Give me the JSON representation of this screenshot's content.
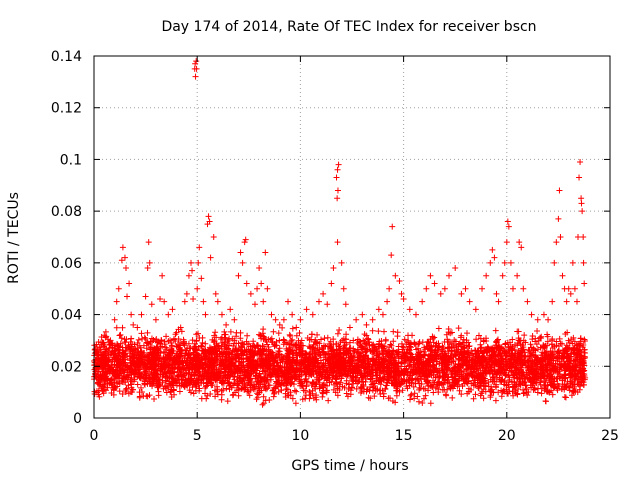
{
  "chart_data": {
    "type": "scatter",
    "title": "Day 174 of 2014, Rate Of TEC Index for receiver bscn",
    "xlabel": "GPS time / hours",
    "ylabel": "ROTI / TECUs",
    "xlim": [
      0,
      25
    ],
    "ylim": [
      0,
      0.14
    ],
    "xticks": [
      0,
      5,
      10,
      15,
      20,
      25
    ],
    "yticks": [
      0,
      0.02,
      0.04,
      0.06,
      0.08,
      0.1,
      0.12,
      0.14
    ],
    "xtick_labels": [
      "0",
      "5",
      "10",
      "15",
      "20",
      "25"
    ],
    "ytick_labels": [
      "0",
      "0.02",
      "0.04",
      "0.06",
      "0.08",
      "0.1",
      "0.12",
      "0.14"
    ],
    "grid": true,
    "marker": "+",
    "series": [
      {
        "name": "ROTI",
        "color": "#ff0000",
        "band": {
          "x_range": [
            0,
            23.8
          ],
          "y_range": [
            0.004,
            0.035
          ],
          "typical": 0.018,
          "count": 5200
        },
        "points": [
          [
            0.2,
            0.026
          ],
          [
            0.5,
            0.032
          ],
          [
            0.8,
            0.03
          ],
          [
            1.0,
            0.038
          ],
          [
            1.1,
            0.045
          ],
          [
            1.2,
            0.05
          ],
          [
            1.35,
            0.061
          ],
          [
            1.4,
            0.066
          ],
          [
            1.5,
            0.062
          ],
          [
            1.55,
            0.058
          ],
          [
            1.6,
            0.047
          ],
          [
            1.7,
            0.052
          ],
          [
            1.8,
            0.04
          ],
          [
            1.9,
            0.036
          ],
          [
            2.1,
            0.035
          ],
          [
            2.3,
            0.04
          ],
          [
            2.5,
            0.047
          ],
          [
            2.6,
            0.058
          ],
          [
            2.65,
            0.068
          ],
          [
            2.7,
            0.06
          ],
          [
            2.8,
            0.044
          ],
          [
            3.0,
            0.038
          ],
          [
            3.2,
            0.046
          ],
          [
            3.3,
            0.055
          ],
          [
            3.4,
            0.045
          ],
          [
            3.6,
            0.04
          ],
          [
            3.8,
            0.042
          ],
          [
            4.0,
            0.033
          ],
          [
            4.2,
            0.035
          ],
          [
            4.4,
            0.045
          ],
          [
            4.5,
            0.048
          ],
          [
            4.6,
            0.055
          ],
          [
            4.7,
            0.06
          ],
          [
            4.75,
            0.057
          ],
          [
            4.8,
            0.046
          ],
          [
            4.88,
            0.135
          ],
          [
            4.9,
            0.137
          ],
          [
            4.92,
            0.132
          ],
          [
            4.95,
            0.138
          ],
          [
            4.97,
            0.135
          ],
          [
            5.0,
            0.05
          ],
          [
            5.05,
            0.06
          ],
          [
            5.1,
            0.066
          ],
          [
            5.2,
            0.054
          ],
          [
            5.3,
            0.045
          ],
          [
            5.4,
            0.04
          ],
          [
            5.5,
            0.075
          ],
          [
            5.55,
            0.078
          ],
          [
            5.6,
            0.076
          ],
          [
            5.65,
            0.062
          ],
          [
            5.8,
            0.07
          ],
          [
            5.9,
            0.048
          ],
          [
            6.0,
            0.045
          ],
          [
            6.2,
            0.04
          ],
          [
            6.4,
            0.036
          ],
          [
            6.6,
            0.042
          ],
          [
            6.8,
            0.038
          ],
          [
            7.0,
            0.055
          ],
          [
            7.1,
            0.064
          ],
          [
            7.2,
            0.06
          ],
          [
            7.3,
            0.068
          ],
          [
            7.35,
            0.069
          ],
          [
            7.4,
            0.052
          ],
          [
            7.6,
            0.048
          ],
          [
            7.8,
            0.044
          ],
          [
            7.9,
            0.05
          ],
          [
            8.0,
            0.058
          ],
          [
            8.1,
            0.052
          ],
          [
            8.2,
            0.045
          ],
          [
            8.3,
            0.064
          ],
          [
            8.4,
            0.05
          ],
          [
            8.6,
            0.04
          ],
          [
            8.8,
            0.038
          ],
          [
            9.0,
            0.036
          ],
          [
            9.2,
            0.038
          ],
          [
            9.4,
            0.045
          ],
          [
            9.6,
            0.04
          ],
          [
            9.8,
            0.035
          ],
          [
            10.0,
            0.038
          ],
          [
            10.3,
            0.042
          ],
          [
            10.6,
            0.04
          ],
          [
            10.9,
            0.045
          ],
          [
            11.1,
            0.048
          ],
          [
            11.3,
            0.044
          ],
          [
            11.5,
            0.052
          ],
          [
            11.6,
            0.058
          ],
          [
            11.75,
            0.093
          ],
          [
            11.8,
            0.096
          ],
          [
            11.85,
            0.098
          ],
          [
            11.82,
            0.088
          ],
          [
            11.78,
            0.085
          ],
          [
            11.8,
            0.068
          ],
          [
            12.0,
            0.06
          ],
          [
            12.1,
            0.05
          ],
          [
            12.2,
            0.044
          ],
          [
            12.4,
            0.035
          ],
          [
            12.7,
            0.038
          ],
          [
            13.0,
            0.04
          ],
          [
            13.2,
            0.036
          ],
          [
            13.5,
            0.038
          ],
          [
            13.8,
            0.042
          ],
          [
            14.0,
            0.04
          ],
          [
            14.2,
            0.045
          ],
          [
            14.3,
            0.05
          ],
          [
            14.4,
            0.063
          ],
          [
            14.45,
            0.074
          ],
          [
            14.6,
            0.055
          ],
          [
            14.8,
            0.053
          ],
          [
            14.9,
            0.048
          ],
          [
            15.0,
            0.046
          ],
          [
            15.3,
            0.042
          ],
          [
            15.6,
            0.04
          ],
          [
            15.9,
            0.045
          ],
          [
            16.1,
            0.05
          ],
          [
            16.3,
            0.055
          ],
          [
            16.5,
            0.052
          ],
          [
            16.8,
            0.048
          ],
          [
            17.0,
            0.05
          ],
          [
            17.2,
            0.055
          ],
          [
            17.5,
            0.058
          ],
          [
            17.8,
            0.048
          ],
          [
            18.0,
            0.05
          ],
          [
            18.2,
            0.045
          ],
          [
            18.5,
            0.042
          ],
          [
            18.8,
            0.05
          ],
          [
            19.0,
            0.055
          ],
          [
            19.2,
            0.06
          ],
          [
            19.3,
            0.065
          ],
          [
            19.4,
            0.062
          ],
          [
            19.5,
            0.048
          ],
          [
            19.6,
            0.045
          ],
          [
            19.8,
            0.055
          ],
          [
            19.9,
            0.06
          ],
          [
            20.0,
            0.068
          ],
          [
            20.05,
            0.076
          ],
          [
            20.1,
            0.074
          ],
          [
            20.2,
            0.06
          ],
          [
            20.3,
            0.05
          ],
          [
            20.5,
            0.055
          ],
          [
            20.6,
            0.068
          ],
          [
            20.7,
            0.066
          ],
          [
            20.8,
            0.05
          ],
          [
            21.0,
            0.045
          ],
          [
            21.2,
            0.04
          ],
          [
            21.5,
            0.038
          ],
          [
            21.8,
            0.04
          ],
          [
            22.0,
            0.038
          ],
          [
            22.2,
            0.045
          ],
          [
            22.3,
            0.06
          ],
          [
            22.4,
            0.068
          ],
          [
            22.5,
            0.077
          ],
          [
            22.55,
            0.088
          ],
          [
            22.6,
            0.07
          ],
          [
            22.7,
            0.055
          ],
          [
            22.8,
            0.05
          ],
          [
            22.9,
            0.045
          ],
          [
            23.0,
            0.05
          ],
          [
            23.1,
            0.048
          ],
          [
            23.2,
            0.06
          ],
          [
            23.3,
            0.05
          ],
          [
            23.4,
            0.045
          ],
          [
            23.45,
            0.07
          ],
          [
            23.5,
            0.093
          ],
          [
            23.55,
            0.099
          ],
          [
            23.6,
            0.085
          ],
          [
            23.62,
            0.083
          ],
          [
            23.65,
            0.08
          ],
          [
            23.7,
            0.07
          ],
          [
            23.72,
            0.06
          ],
          [
            23.75,
            0.052
          ]
        ]
      }
    ]
  }
}
